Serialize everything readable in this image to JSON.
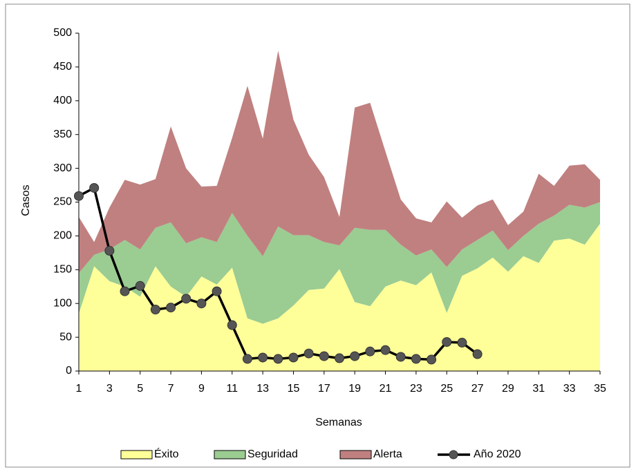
{
  "chart_data": {
    "type": "area",
    "stacked": true,
    "x_label": "Semanas",
    "y_label": "Casos",
    "x": [
      1,
      2,
      3,
      4,
      5,
      6,
      7,
      8,
      9,
      10,
      11,
      12,
      13,
      14,
      15,
      16,
      17,
      18,
      19,
      20,
      21,
      22,
      23,
      24,
      25,
      26,
      27,
      28,
      29,
      30,
      31,
      32,
      33,
      34,
      35
    ],
    "xlim": [
      1,
      35
    ],
    "xticks": [
      1,
      3,
      5,
      7,
      9,
      11,
      13,
      15,
      17,
      19,
      21,
      23,
      25,
      27,
      29,
      31,
      33,
      35
    ],
    "ylim": [
      0,
      500
    ],
    "yticks": [
      0,
      50,
      100,
      150,
      200,
      250,
      300,
      350,
      400,
      450,
      500
    ],
    "series": [
      {
        "name": "Éxito",
        "color": "#ffff99",
        "type": "area",
        "values": [
          85,
          155,
          133,
          125,
          110,
          155,
          125,
          110,
          140,
          128,
          153,
          78,
          70,
          78,
          97,
          120,
          122,
          151,
          102,
          96,
          125,
          134,
          127,
          146,
          86,
          141,
          152,
          168,
          147,
          170,
          160,
          193,
          196,
          187,
          218
        ]
      },
      {
        "name": "Seguridad",
        "color": "#9bcc92",
        "type": "area",
        "values": [
          60,
          17,
          47,
          69,
          70,
          57,
          95,
          79,
          58,
          63,
          81,
          122,
          100,
          136,
          104,
          81,
          69,
          35,
          110,
          113,
          84,
          53,
          44,
          34,
          68,
          39,
          42,
          40,
          32,
          30,
          58,
          37,
          50,
          55,
          32
        ]
      },
      {
        "name": "Alerta",
        "color": "#c08080",
        "type": "area",
        "values": [
          83,
          19,
          62,
          89,
          96,
          72,
          142,
          111,
          75,
          83,
          111,
          222,
          174,
          260,
          171,
          119,
          96,
          42,
          178,
          188,
          116,
          67,
          55,
          40,
          97,
          47,
          51,
          46,
          37,
          36,
          74,
          44,
          58,
          64,
          33
        ]
      },
      {
        "name": "Año 2020",
        "color": "#000000",
        "marker_color": "#555555",
        "type": "line",
        "values": [
          259,
          271,
          178,
          118,
          126,
          91,
          94,
          107,
          100,
          118,
          68,
          18,
          20,
          18,
          20,
          26,
          22,
          19,
          22,
          29,
          31,
          21,
          18,
          17,
          43,
          42,
          25,
          null,
          null,
          null,
          null,
          null,
          null,
          null,
          null
        ]
      }
    ],
    "legend": "bottom"
  }
}
